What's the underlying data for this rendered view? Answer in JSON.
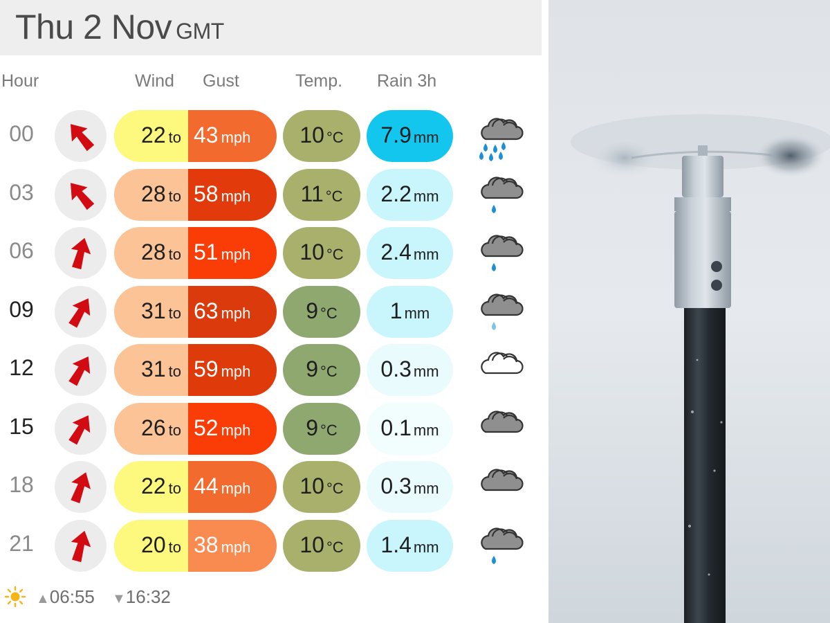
{
  "header": {
    "date": "Thu 2 Nov",
    "timezone": "GMT"
  },
  "columns": {
    "hour": "Hour",
    "wind": "Wind",
    "gust": "Gust",
    "temp": "Temp.",
    "rain": "Rain 3h"
  },
  "units": {
    "to": "to",
    "speed": "mph",
    "temp": "°C",
    "rain": "mm"
  },
  "rows": [
    {
      "hour": "00",
      "hour_style": "dim",
      "direction_deg": 320,
      "wind": "22",
      "gust": "43",
      "temp": "10",
      "rain": "7.9",
      "wind_color": "#fdf87e",
      "gust_color": "#f26a2e",
      "temp_color": "#a8b06c",
      "rain_color": "#12c6ee",
      "icon": "rain-heavy-icon"
    },
    {
      "hour": "03",
      "hour_style": "dim",
      "direction_deg": 320,
      "wind": "28",
      "gust": "58",
      "temp": "11",
      "rain": "2.2",
      "wind_color": "#fcc396",
      "gust_color": "#e23a0a",
      "temp_color": "#a8b06c",
      "rain_color": "#c8f6fc",
      "icon": "rain-icon"
    },
    {
      "hour": "06",
      "hour_style": "dim",
      "direction_deg": 15,
      "wind": "28",
      "gust": "51",
      "temp": "10",
      "rain": "2.4",
      "wind_color": "#fcc396",
      "gust_color": "#fa3c06",
      "temp_color": "#a8b06c",
      "rain_color": "#c8f6fc",
      "icon": "rain-icon"
    },
    {
      "hour": "09",
      "hour_style": "dark",
      "direction_deg": 30,
      "wind": "31",
      "gust": "63",
      "temp": "9",
      "rain": "1",
      "wind_color": "#fcc396",
      "gust_color": "#da3a0c",
      "temp_color": "#8ea870",
      "rain_color": "#c8f6fc",
      "icon": "rain-light-icon"
    },
    {
      "hour": "12",
      "hour_style": "dark",
      "direction_deg": 30,
      "wind": "31",
      "gust": "59",
      "temp": "9",
      "rain": "0.3",
      "wind_color": "#fcc396",
      "gust_color": "#de3a0a",
      "temp_color": "#8ea870",
      "rain_color": "#eafbfd",
      "icon": "cloud-outline-icon"
    },
    {
      "hour": "15",
      "hour_style": "dark",
      "direction_deg": 30,
      "wind": "26",
      "gust": "52",
      "temp": "9",
      "rain": "0.1",
      "wind_color": "#fcc396",
      "gust_color": "#fa3c06",
      "temp_color": "#8ea870",
      "rain_color": "#f2fdfe",
      "icon": "cloud-icon"
    },
    {
      "hour": "18",
      "hour_style": "dim",
      "direction_deg": 20,
      "wind": "22",
      "gust": "44",
      "temp": "10",
      "rain": "0.3",
      "wind_color": "#fdf87e",
      "gust_color": "#f26a2e",
      "temp_color": "#a8b06c",
      "rain_color": "#eafbfd",
      "icon": "cloud-icon"
    },
    {
      "hour": "21",
      "hour_style": "dim",
      "direction_deg": 15,
      "wind": "20",
      "gust": "38",
      "temp": "10",
      "rain": "1.4",
      "wind_color": "#fdf87e",
      "gust_color": "#f98a50",
      "temp_color": "#a8b06c",
      "rain_color": "#c8f6fc",
      "icon": "rain-icon"
    }
  ],
  "footer": {
    "sunrise": "06:55",
    "sunset": "16:32",
    "sun_icon": "sun-icon",
    "sunrise_symbol": "▲",
    "sunset_symbol": "▼"
  },
  "photo": {
    "subject": "anemometer-photo"
  }
}
